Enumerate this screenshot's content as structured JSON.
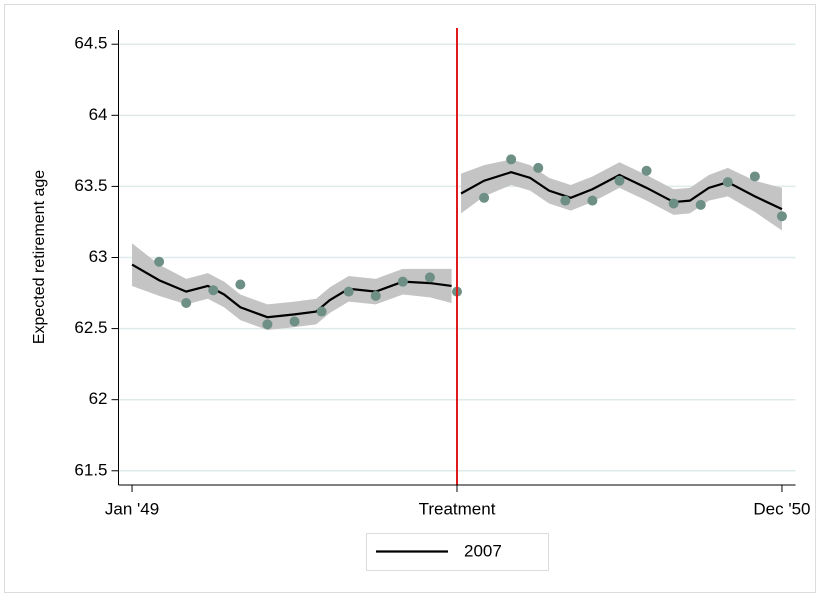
{
  "chart_data": {
    "type": "scatter",
    "y_label": "Expected retirement age",
    "xlim": [
      -0.5,
      24.5
    ],
    "ylim": [
      61.4,
      64.6
    ],
    "xticks": [
      {
        "value": 0,
        "label": "Jan '49"
      },
      {
        "value": 12,
        "label": "Treatment"
      },
      {
        "value": 24,
        "label": "Dec '50"
      }
    ],
    "yticks": [
      61.5,
      62,
      62.5,
      63,
      63.5,
      64,
      64.5
    ],
    "grid": true,
    "grid_color": "#dfeaea",
    "vline": {
      "x": 12,
      "color": "#e0191b"
    },
    "points": {
      "color": "#6e8f85",
      "x": [
        1,
        2,
        3,
        4,
        5,
        6,
        7,
        8,
        9,
        10,
        11,
        12,
        13,
        14,
        15,
        16,
        17,
        18,
        19,
        20,
        21,
        22,
        23,
        24
      ],
      "values": [
        62.97,
        62.68,
        62.77,
        62.81,
        62.53,
        62.55,
        62.62,
        62.76,
        62.73,
        62.83,
        62.86,
        62.76,
        63.42,
        63.69,
        63.63,
        63.4,
        63.4,
        63.54,
        63.61,
        63.38,
        63.37,
        63.53,
        63.57,
        63.29
      ]
    },
    "series": [
      {
        "name": "2007",
        "color": "#000000",
        "band_color": "#c4c4c4",
        "x": [
          0,
          1,
          2,
          2.8,
          3.4,
          4,
          5,
          6,
          6.8,
          7.3,
          8,
          9,
          10,
          11,
          11.8,
          12,
          12.15,
          13,
          14,
          14.7,
          15.4,
          16.2,
          17,
          18,
          19,
          20,
          20.6,
          21.3,
          22,
          23,
          24
        ],
        "values": [
          62.95,
          62.84,
          62.76,
          62.8,
          62.74,
          62.65,
          62.58,
          62.6,
          62.62,
          62.7,
          62.78,
          62.76,
          62.83,
          62.82,
          62.8,
          null,
          63.45,
          63.54,
          63.6,
          63.56,
          63.47,
          63.42,
          63.48,
          63.58,
          63.49,
          63.39,
          63.4,
          63.49,
          63.53,
          63.43,
          63.34
        ],
        "lower": [
          62.8,
          62.73,
          62.67,
          62.71,
          62.65,
          62.56,
          62.49,
          62.51,
          62.53,
          62.61,
          62.69,
          62.67,
          62.74,
          62.72,
          62.68,
          null,
          63.31,
          63.43,
          63.51,
          63.47,
          63.38,
          63.33,
          63.39,
          63.49,
          63.4,
          63.3,
          63.31,
          63.4,
          63.43,
          63.32,
          63.19
        ],
        "upper": [
          63.1,
          62.95,
          62.85,
          62.89,
          62.83,
          62.74,
          62.67,
          62.69,
          62.71,
          62.79,
          62.87,
          62.85,
          62.92,
          62.92,
          62.92,
          null,
          63.59,
          63.65,
          63.69,
          63.65,
          63.56,
          63.51,
          63.57,
          63.67,
          63.58,
          63.48,
          63.49,
          63.58,
          63.63,
          63.54,
          63.49
        ]
      }
    ]
  }
}
